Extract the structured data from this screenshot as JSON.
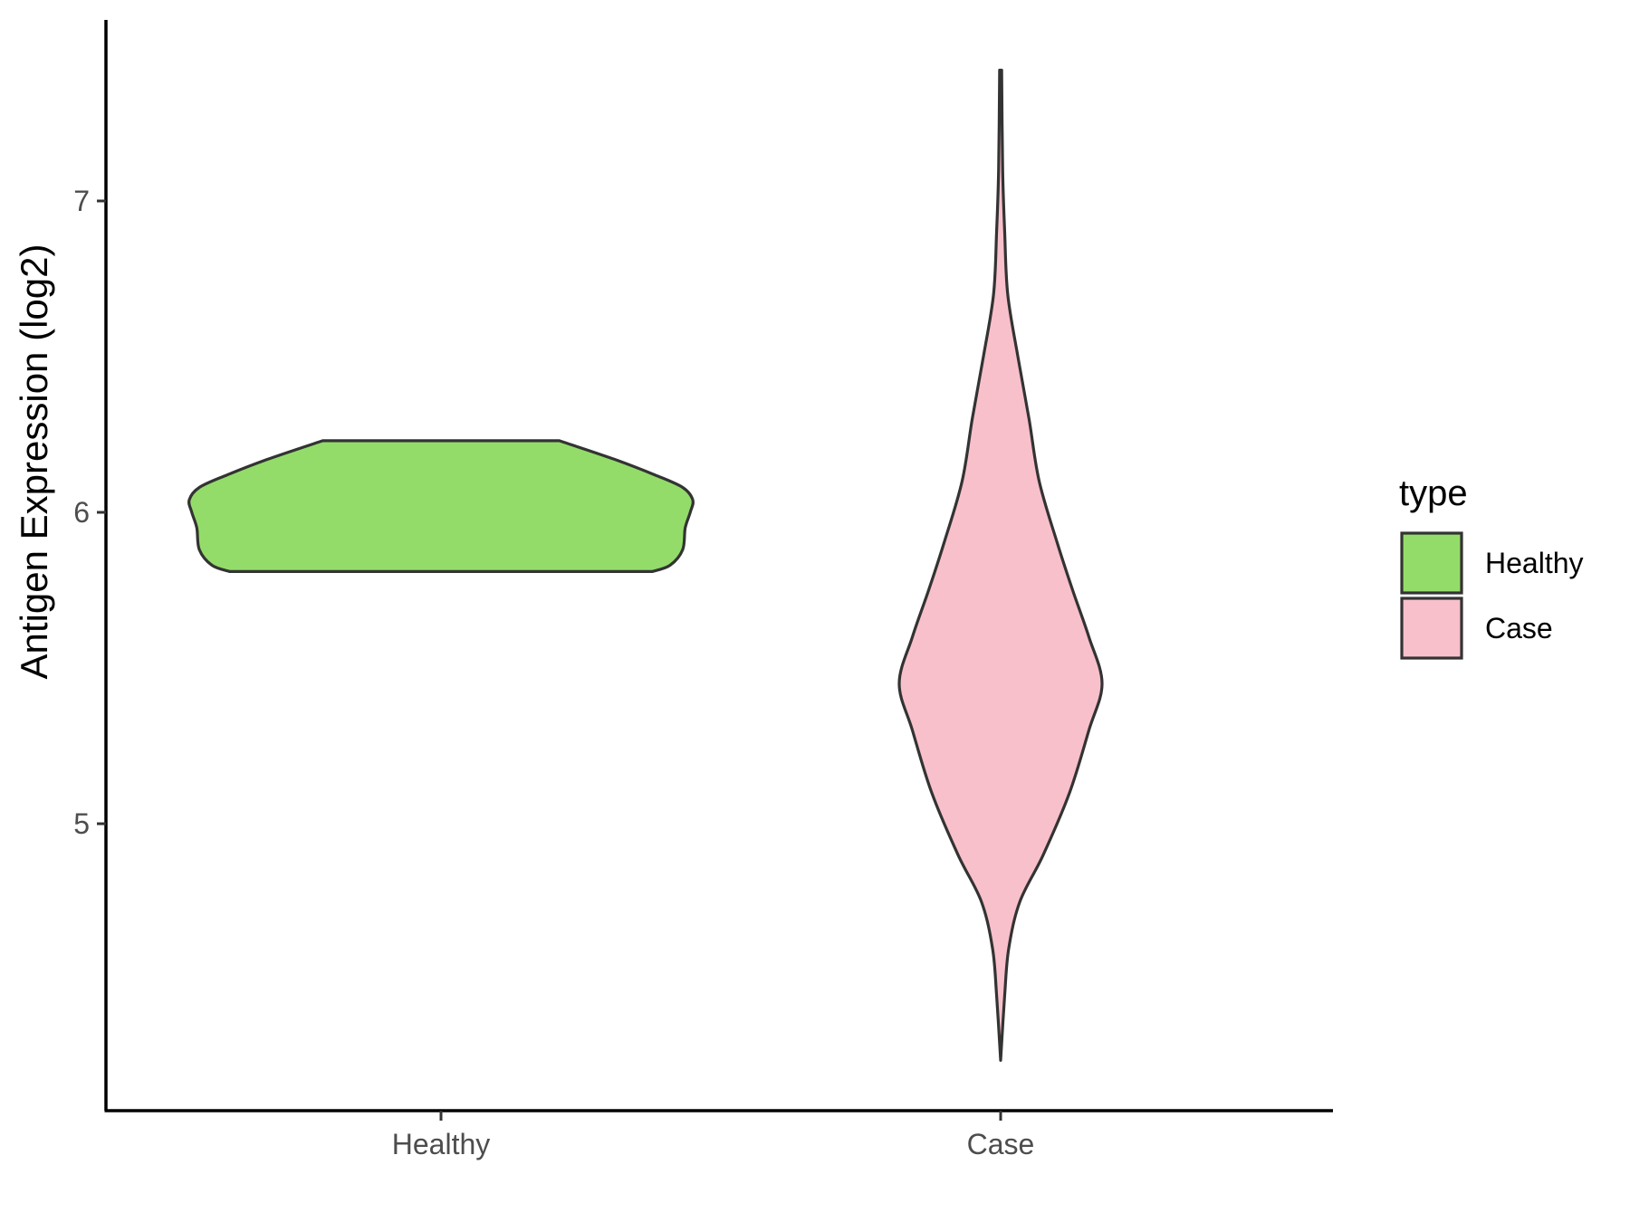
{
  "chart_data": {
    "type": "violin",
    "ylabel": "Antigen Expression (log2)",
    "xlabel": "",
    "categories": [
      "Healthy",
      "Case"
    ],
    "y_ticks": [
      5,
      6,
      7
    ],
    "ylim": [
      4.1,
      7.6
    ],
    "grid": false,
    "legend": {
      "title": "type",
      "placement": "right",
      "entries": [
        {
          "label": "Healthy",
          "color": "#93DC6A"
        },
        {
          "label": "Case",
          "color": "#F8C0CB"
        }
      ]
    },
    "series": [
      {
        "category": "Healthy",
        "color": "#93DC6A",
        "y_min": 5.81,
        "y_max": 6.23,
        "density_profile": [
          {
            "y": 5.81,
            "w": 0.84
          },
          {
            "y": 5.83,
            "w": 0.91
          },
          {
            "y": 5.88,
            "w": 0.96
          },
          {
            "y": 5.95,
            "w": 0.97
          },
          {
            "y": 6.0,
            "w": 0.99
          },
          {
            "y": 6.04,
            "w": 1.0
          },
          {
            "y": 6.08,
            "w": 0.96
          },
          {
            "y": 6.12,
            "w": 0.85
          },
          {
            "y": 6.17,
            "w": 0.69
          },
          {
            "y": 6.23,
            "w": 0.47
          }
        ]
      },
      {
        "category": "Case",
        "color": "#F8C0CB",
        "y_min": 4.24,
        "y_max": 7.42,
        "density_profile": [
          {
            "y": 4.24,
            "w": 0.0
          },
          {
            "y": 4.45,
            "w": 0.04
          },
          {
            "y": 4.6,
            "w": 0.08
          },
          {
            "y": 4.75,
            "w": 0.19
          },
          {
            "y": 4.9,
            "w": 0.42
          },
          {
            "y": 5.1,
            "w": 0.68
          },
          {
            "y": 5.3,
            "w": 0.87
          },
          {
            "y": 5.45,
            "w": 1.0
          },
          {
            "y": 5.6,
            "w": 0.87
          },
          {
            "y": 5.75,
            "w": 0.71
          },
          {
            "y": 5.9,
            "w": 0.56
          },
          {
            "y": 6.1,
            "w": 0.38
          },
          {
            "y": 6.3,
            "w": 0.28
          },
          {
            "y": 6.5,
            "w": 0.17
          },
          {
            "y": 6.7,
            "w": 0.07
          },
          {
            "y": 6.9,
            "w": 0.04
          },
          {
            "y": 7.1,
            "w": 0.02
          },
          {
            "y": 7.42,
            "w": 0.01
          }
        ]
      }
    ]
  }
}
